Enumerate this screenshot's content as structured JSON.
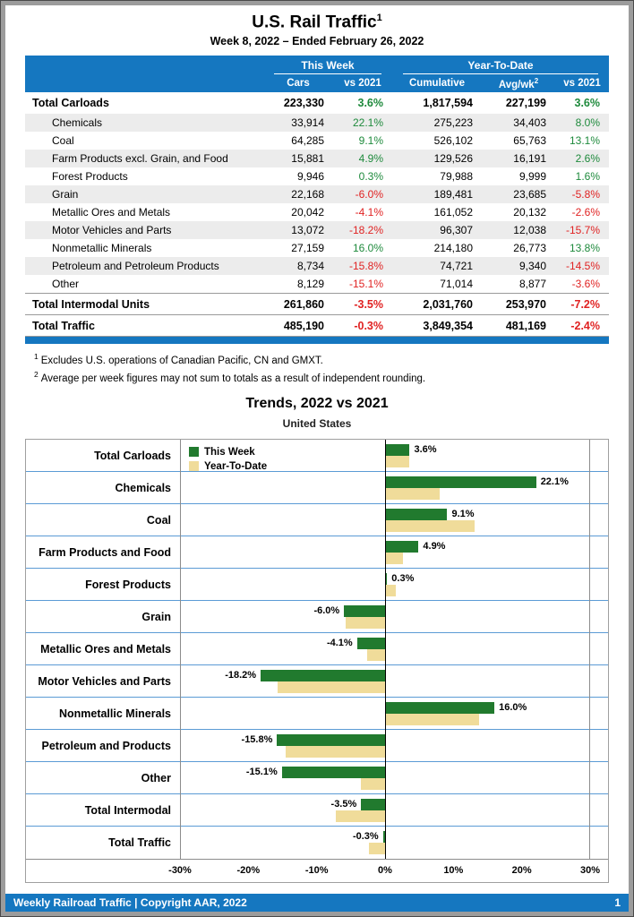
{
  "colors": {
    "header_blue": "#1577c0",
    "positive_green": "#1e8a3c",
    "negative_red": "#e02222",
    "bar_green": "#217a2e",
    "bar_tan": "#f0dc9a",
    "grid_blue": "#5b9bd5"
  },
  "page": {
    "title": "U.S. Rail Traffic",
    "title_footnote_ref": "1",
    "subtitle": "Week 8, 2022 – Ended February 26, 2022"
  },
  "table": {
    "group_headers": {
      "this_week": "This Week",
      "year_to_date": "Year-To-Date"
    },
    "columns": {
      "cars": "Cars",
      "vs_2021_week": "vs 2021",
      "cumulative": "Cumulative",
      "avg_wk": "Avg/wk",
      "avg_wk_footnote_ref": "2",
      "vs_2021_ytd": "vs 2021"
    },
    "rows": [
      {
        "label": "Total Carloads",
        "type": "total",
        "shaded": false,
        "sep": false,
        "cars": "223,330",
        "vs": "3.6%",
        "cum": "1,817,594",
        "avg": "227,199",
        "vs2": "3.6%"
      },
      {
        "label": "Chemicals",
        "type": "detail",
        "shaded": true,
        "sep": false,
        "cars": "33,914",
        "vs": "22.1%",
        "cum": "275,223",
        "avg": "34,403",
        "vs2": "8.0%"
      },
      {
        "label": "Coal",
        "type": "detail",
        "shaded": false,
        "sep": false,
        "cars": "64,285",
        "vs": "9.1%",
        "cum": "526,102",
        "avg": "65,763",
        "vs2": "13.1%"
      },
      {
        "label": "Farm Products excl. Grain, and Food",
        "type": "detail",
        "shaded": true,
        "sep": false,
        "cars": "15,881",
        "vs": "4.9%",
        "cum": "129,526",
        "avg": "16,191",
        "vs2": "2.6%"
      },
      {
        "label": "Forest Products",
        "type": "detail",
        "shaded": false,
        "sep": false,
        "cars": "9,946",
        "vs": "0.3%",
        "cum": "79,988",
        "avg": "9,999",
        "vs2": "1.6%"
      },
      {
        "label": "Grain",
        "type": "detail",
        "shaded": true,
        "sep": false,
        "cars": "22,168",
        "vs": "-6.0%",
        "cum": "189,481",
        "avg": "23,685",
        "vs2": "-5.8%"
      },
      {
        "label": "Metallic Ores and Metals",
        "type": "detail",
        "shaded": false,
        "sep": false,
        "cars": "20,042",
        "vs": "-4.1%",
        "cum": "161,052",
        "avg": "20,132",
        "vs2": "-2.6%"
      },
      {
        "label": "Motor Vehicles and Parts",
        "type": "detail",
        "shaded": true,
        "sep": false,
        "cars": "13,072",
        "vs": "-18.2%",
        "cum": "96,307",
        "avg": "12,038",
        "vs2": "-15.7%"
      },
      {
        "label": "Nonmetallic Minerals",
        "type": "detail",
        "shaded": false,
        "sep": false,
        "cars": "27,159",
        "vs": "16.0%",
        "cum": "214,180",
        "avg": "26,773",
        "vs2": "13.8%"
      },
      {
        "label": "Petroleum and Petroleum Products",
        "type": "detail",
        "shaded": true,
        "sep": false,
        "cars": "8,734",
        "vs": "-15.8%",
        "cum": "74,721",
        "avg": "9,340",
        "vs2": "-14.5%"
      },
      {
        "label": "Other",
        "type": "detail",
        "shaded": false,
        "sep": false,
        "cars": "8,129",
        "vs": "-15.1%",
        "cum": "71,014",
        "avg": "8,877",
        "vs2": "-3.6%"
      },
      {
        "label": "Total Intermodal Units",
        "type": "total",
        "shaded": false,
        "sep": true,
        "cars": "261,860",
        "vs": "-3.5%",
        "cum": "2,031,760",
        "avg": "253,970",
        "vs2": "-7.2%"
      },
      {
        "label": "Total Traffic",
        "type": "total",
        "shaded": false,
        "sep": true,
        "cars": "485,190",
        "vs": "-0.3%",
        "cum": "3,849,354",
        "avg": "481,169",
        "vs2": "-2.4%"
      }
    ]
  },
  "footnotes": [
    {
      "ref": "1",
      "text": "Excludes U.S. operations of Canadian Pacific, CN and GMXT."
    },
    {
      "ref": "2",
      "text": "Average per week figures may not sum to totals as a result of independent rounding."
    }
  ],
  "chart": {
    "title": "Trends, 2022 vs 2021",
    "subtitle": "United States",
    "legend": [
      {
        "label": "This Week"
      },
      {
        "label": "Year-To-Date"
      }
    ]
  },
  "chart_data": {
    "type": "bar",
    "orientation": "horizontal",
    "title": "Trends, 2022 vs 2021",
    "subtitle": "United States",
    "categories": [
      "Total Carloads",
      "Chemicals",
      "Coal",
      "Farm Products and Food",
      "Forest Products",
      "Grain",
      "Metallic Ores and Metals",
      "Motor Vehicles and Parts",
      "Nonmetallic Minerals",
      "Petroleum and Products",
      "Other",
      "Total Intermodal",
      "Total Traffic"
    ],
    "series": [
      {
        "name": "This Week",
        "color": "#217a2e",
        "values": [
          3.6,
          22.1,
          9.1,
          4.9,
          0.3,
          -6.0,
          -4.1,
          -18.2,
          16.0,
          -15.8,
          -15.1,
          -3.5,
          -0.3
        ],
        "labels": [
          "3.6%",
          "22.1%",
          "9.1%",
          "4.9%",
          "0.3%",
          "-6.0%",
          "-4.1%",
          "-18.2%",
          "16.0%",
          "-15.8%",
          "-15.1%",
          "-3.5%",
          "-0.3%"
        ]
      },
      {
        "name": "Year-To-Date",
        "color": "#f0dc9a",
        "values": [
          3.6,
          8.0,
          13.1,
          2.6,
          1.6,
          -5.8,
          -2.6,
          -15.7,
          13.8,
          -14.5,
          -3.6,
          -7.2,
          -2.4
        ]
      }
    ],
    "xlim": [
      -30,
      30
    ],
    "xticks": [
      {
        "value": -30,
        "label": "-30%"
      },
      {
        "value": -20,
        "label": "-20%"
      },
      {
        "value": -10,
        "label": "-10%"
      },
      {
        "value": 0,
        "label": "0%"
      },
      {
        "value": 10,
        "label": "10%"
      },
      {
        "value": 20,
        "label": "20%"
      },
      {
        "value": 30,
        "label": "30%"
      }
    ],
    "legend_position": "top-left",
    "grid": "horizontal category separator lines"
  },
  "footer": {
    "left": "Weekly Railroad Traffic | Copyright AAR, 2022",
    "page_number": "1"
  }
}
